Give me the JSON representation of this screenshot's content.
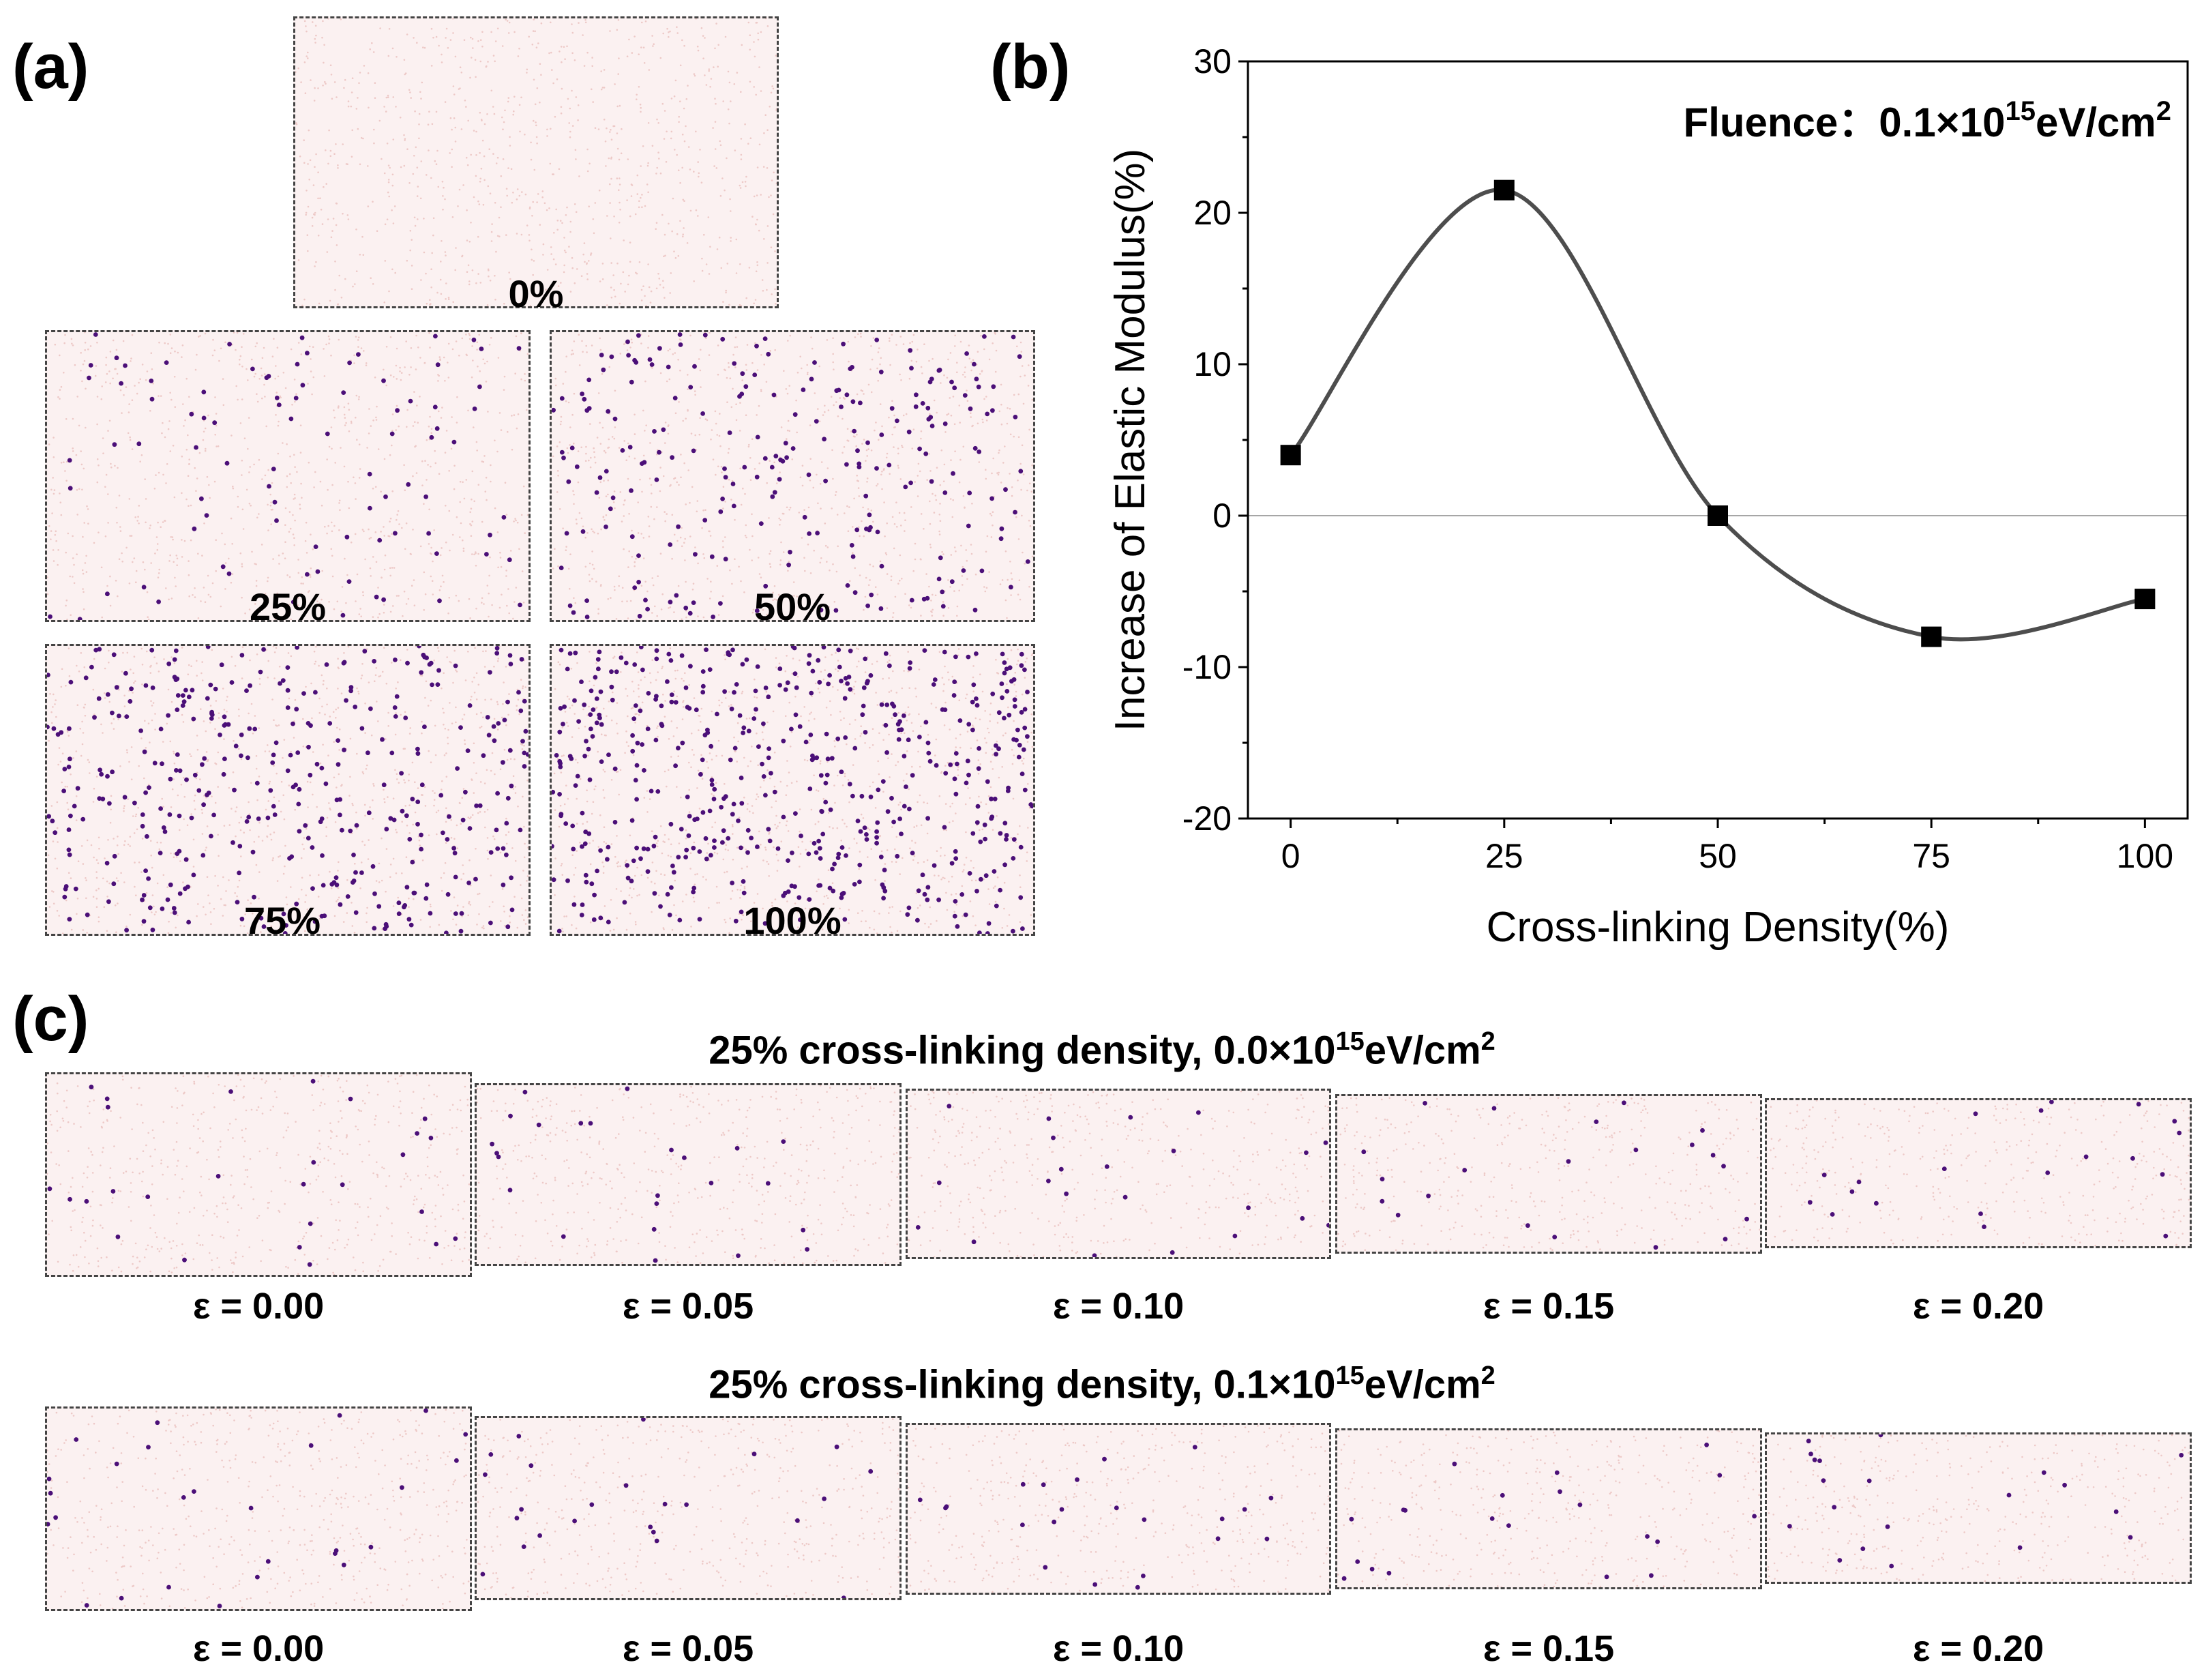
{
  "panels": {
    "a": {
      "letter": "(a)",
      "snapshots": [
        {
          "label": "0%",
          "density": 0
        },
        {
          "label": "25%",
          "density": 90
        },
        {
          "label": "50%",
          "density": 230
        },
        {
          "label": "75%",
          "density": 380
        },
        {
          "label": "100%",
          "density": 520
        }
      ]
    },
    "b": {
      "letter": "(b)"
    },
    "c": {
      "letter": "(c)",
      "rows": [
        {
          "title": "25% cross-linking density, 0.0×10",
          "title_sup": "15",
          "title_unit": "eV/cm",
          "title_unit_sup": "2",
          "strains": [
            "ε = 0.00",
            "ε = 0.05",
            "ε = 0.10",
            "ε = 0.15",
            "ε = 0.20"
          ]
        },
        {
          "title": "25% cross-linking density, 0.1×10",
          "title_sup": "15",
          "title_unit": "eV/cm",
          "title_unit_sup": "2",
          "strains": [
            "ε = 0.00",
            "ε = 0.05",
            "ε = 0.10",
            "ε = 0.15",
            "ε = 0.20"
          ]
        }
      ]
    }
  },
  "colors": {
    "background_dots": "#e8b9b6",
    "crosslink_dots": "#4b0f78",
    "line": "#4d4d4d",
    "marker": "#000000",
    "zero_line": "#a6a6a6"
  },
  "chart_data": {
    "type": "line",
    "title": "",
    "annotation": {
      "text": "Fluence：0.1×10",
      "sup": "15",
      "unit": "eV/cm",
      "unit_sup": "2"
    },
    "xlabel": "Cross-linking Density(%)",
    "ylabel": "Increase of Elastic Modulus(%)",
    "xlim": [
      -5,
      105
    ],
    "ylim": [
      -20,
      30
    ],
    "xticks": [
      0,
      25,
      50,
      75,
      100
    ],
    "yticks": [
      -20,
      -10,
      0,
      10,
      20,
      30
    ],
    "x": [
      0,
      25,
      50,
      75,
      100
    ],
    "series": [
      {
        "name": "Increase of Elastic Modulus",
        "values": [
          4.0,
          21.5,
          0.0,
          -8.0,
          -5.5
        ]
      }
    ],
    "smooth": true,
    "zero_line": true
  }
}
